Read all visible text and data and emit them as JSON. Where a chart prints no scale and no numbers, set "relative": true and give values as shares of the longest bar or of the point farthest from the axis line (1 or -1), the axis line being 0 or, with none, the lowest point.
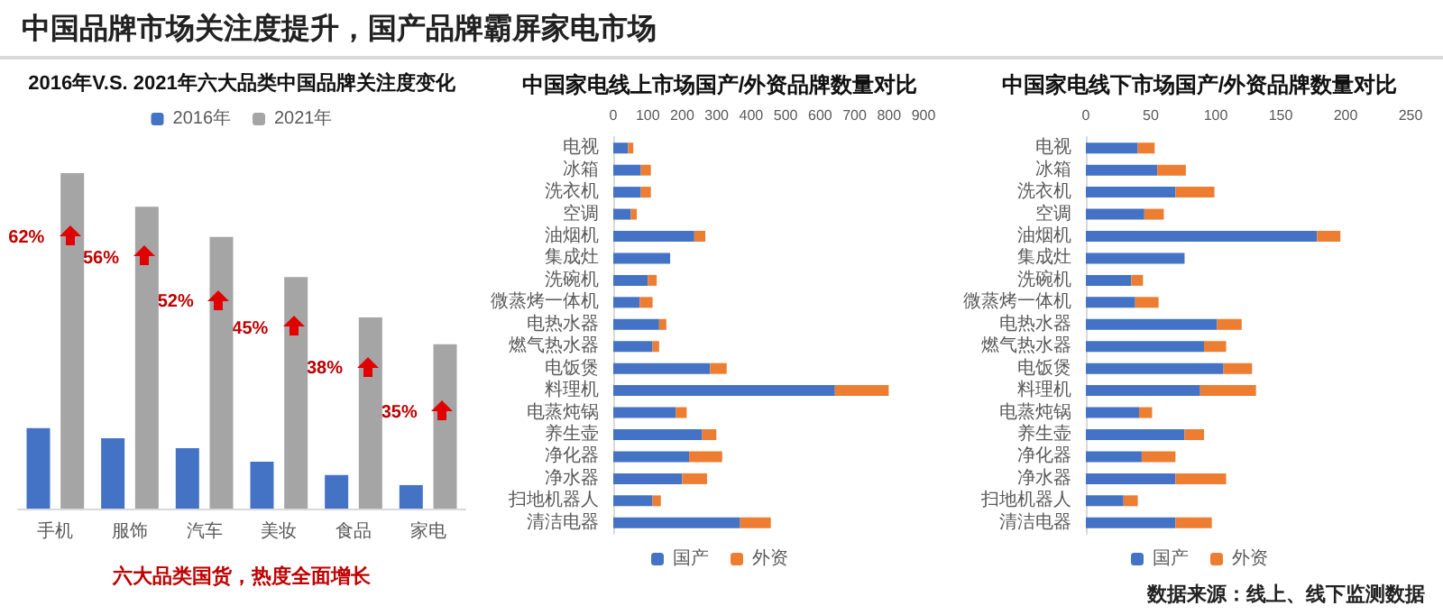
{
  "chart_data": [
    {
      "type": "bar",
      "title": "2016年V.S. 2021年六大品类中国品牌关注度变化",
      "categories": [
        "手机",
        "服饰",
        "汽车",
        "美妆",
        "食品",
        "家电"
      ],
      "relative": true,
      "legend": "top",
      "series": [
        {
          "name": "2016年",
          "color": "#4472c4",
          "values": [
            0.24,
            0.21,
            0.18,
            0.14,
            0.1,
            0.07
          ]
        },
        {
          "name": "2021年",
          "color": "#a5a5a5",
          "values": [
            1,
            0.9,
            0.81,
            0.69,
            0.57,
            0.49
          ]
        }
      ],
      "annotations": [
        "中国品牌市场关注度提升，国产品牌霸屏家电市场",
        "六大品类国货，热度全面增长",
        {
          "text": "62%",
          "x": "手机",
          "y": 0.8
        },
        {
          "text": "56%",
          "x": "服饰",
          "y": 0.74
        },
        {
          "text": "52%",
          "x": "汽车",
          "y": 0.61
        },
        {
          "text": "45%",
          "x": "美妆",
          "y": 0.53
        },
        {
          "text": "38%",
          "x": "食品",
          "y": 0.41
        },
        {
          "text": "35%",
          "x": "家电",
          "y": 0.28
        }
      ]
    },
    {
      "type": "bar",
      "title": "中国家电线上市场国产/外资品牌数量对比",
      "orientation": "horizontal",
      "stacked": true,
      "legend": "bottom",
      "categories": [
        "电视",
        "冰箱",
        "洗衣机",
        "空调",
        "油烟机",
        "集成灶",
        "洗碗机",
        "微蒸烤一体机",
        "电热水器",
        "燃气热水器",
        "电饭煲",
        "料理机",
        "电蒸炖锅",
        "养生壶",
        "净化器",
        "净水器",
        "扫地机器人",
        "清洁电器"
      ],
      "xlim": [
        0,
        900
      ],
      "xticks": [
        0,
        100,
        200,
        300,
        400,
        500,
        600,
        700,
        800,
        900
      ],
      "series": [
        {
          "name": "国产",
          "color": "#4472c4",
          "values": [
            43,
            80,
            80,
            51,
            235,
            165,
            100,
            77,
            133,
            114,
            281,
            643,
            181,
            258,
            220,
            200,
            114,
            368
          ]
        },
        {
          "name": "外资",
          "color": "#ed7d31",
          "values": [
            15,
            29,
            29,
            17,
            32,
            0,
            26,
            37,
            21,
            19,
            48,
            156,
            32,
            41,
            96,
            72,
            24,
            89
          ]
        }
      ]
    },
    {
      "type": "bar",
      "title": "中国家电线下市场国产/外资品牌数量对比",
      "orientation": "horizontal",
      "stacked": true,
      "legend": "bottom",
      "categories": [
        "电视",
        "冰箱",
        "洗衣机",
        "空调",
        "油烟机",
        "集成灶",
        "洗碗机",
        "微蒸烤一体机",
        "电热水器",
        "燃气热水器",
        "电饭煲",
        "料理机",
        "电蒸炖锅",
        "养生壶",
        "净化器",
        "净水器",
        "扫地机器人",
        "清洁电器"
      ],
      "xlim": [
        0,
        250
      ],
      "xticks": [
        0,
        50,
        100,
        150,
        200,
        250
      ],
      "series": [
        {
          "name": "国产",
          "color": "#4472c4",
          "values": [
            40,
            55,
            69,
            45,
            178,
            76,
            35,
            38,
            101,
            91,
            106,
            88,
            41,
            76,
            43,
            69,
            29,
            69
          ]
        },
        {
          "name": "外资",
          "color": "#ed7d31",
          "values": [
            13,
            22,
            30,
            15,
            18,
            0,
            9,
            18,
            19,
            17,
            22,
            43,
            10,
            15,
            26,
            39,
            11,
            28
          ]
        }
      ],
      "annotations": [
        "数据来源：线上、线下监测数据"
      ]
    }
  ]
}
